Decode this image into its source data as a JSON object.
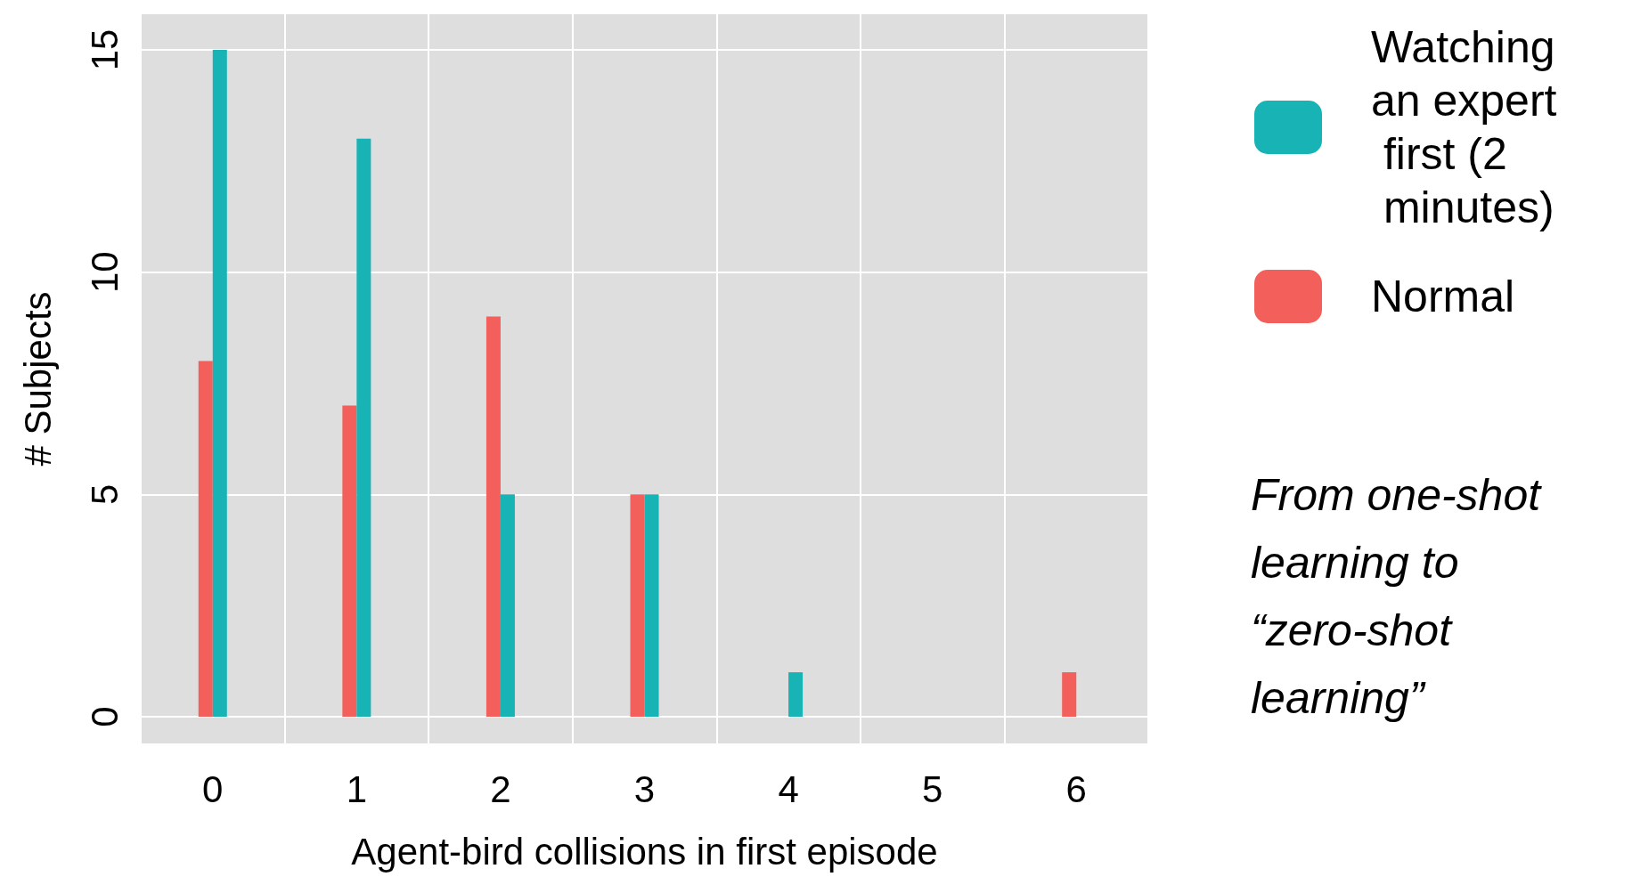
{
  "chart_data": {
    "type": "bar",
    "xlabel": "Agent-bird collisions in first episode",
    "ylabel": "# Subjects",
    "categories": [
      "0",
      "1",
      "2",
      "3",
      "4",
      "5",
      "6"
    ],
    "series": [
      {
        "name": "Normal",
        "color": "#f35f5a",
        "values": [
          8,
          7,
          9,
          5,
          0,
          0,
          1
        ]
      },
      {
        "name": "Watching an expert first (2 minutes)",
        "color": "#17b3b5",
        "values": [
          15,
          13,
          5,
          5,
          1,
          0,
          0
        ]
      }
    ],
    "ylim": [
      -0.6,
      15.8
    ],
    "yticks": [
      0,
      5,
      10,
      15
    ],
    "grid": true,
    "legend": "right",
    "annotations": [
      "From one-shot learning to “zero-shot learning”"
    ]
  }
}
